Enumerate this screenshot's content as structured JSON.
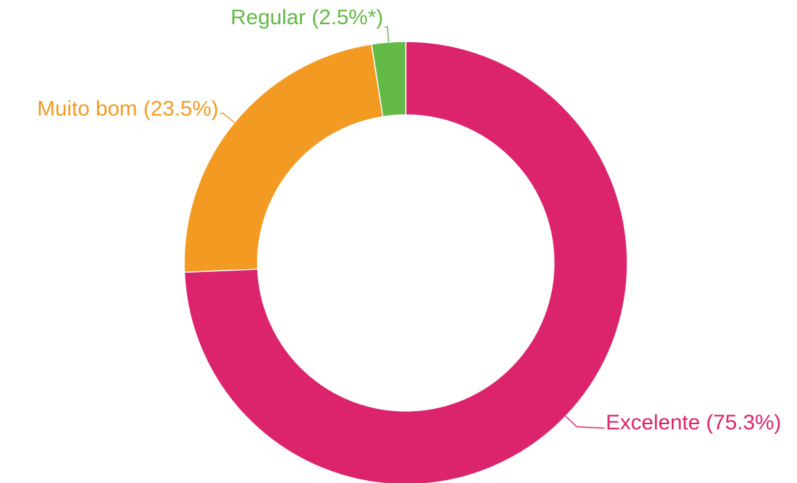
{
  "chart_data": {
    "type": "donut",
    "categories": [
      "Excelente",
      "Muito bom",
      "Regular"
    ],
    "values": [
      75.3,
      23.5,
      2.5
    ],
    "value_labels": [
      "(75.3%)",
      "(23.5%)",
      "(2.5%*)"
    ],
    "colors": [
      "#dc246c",
      "#f39a22",
      "#62b946"
    ]
  }
}
